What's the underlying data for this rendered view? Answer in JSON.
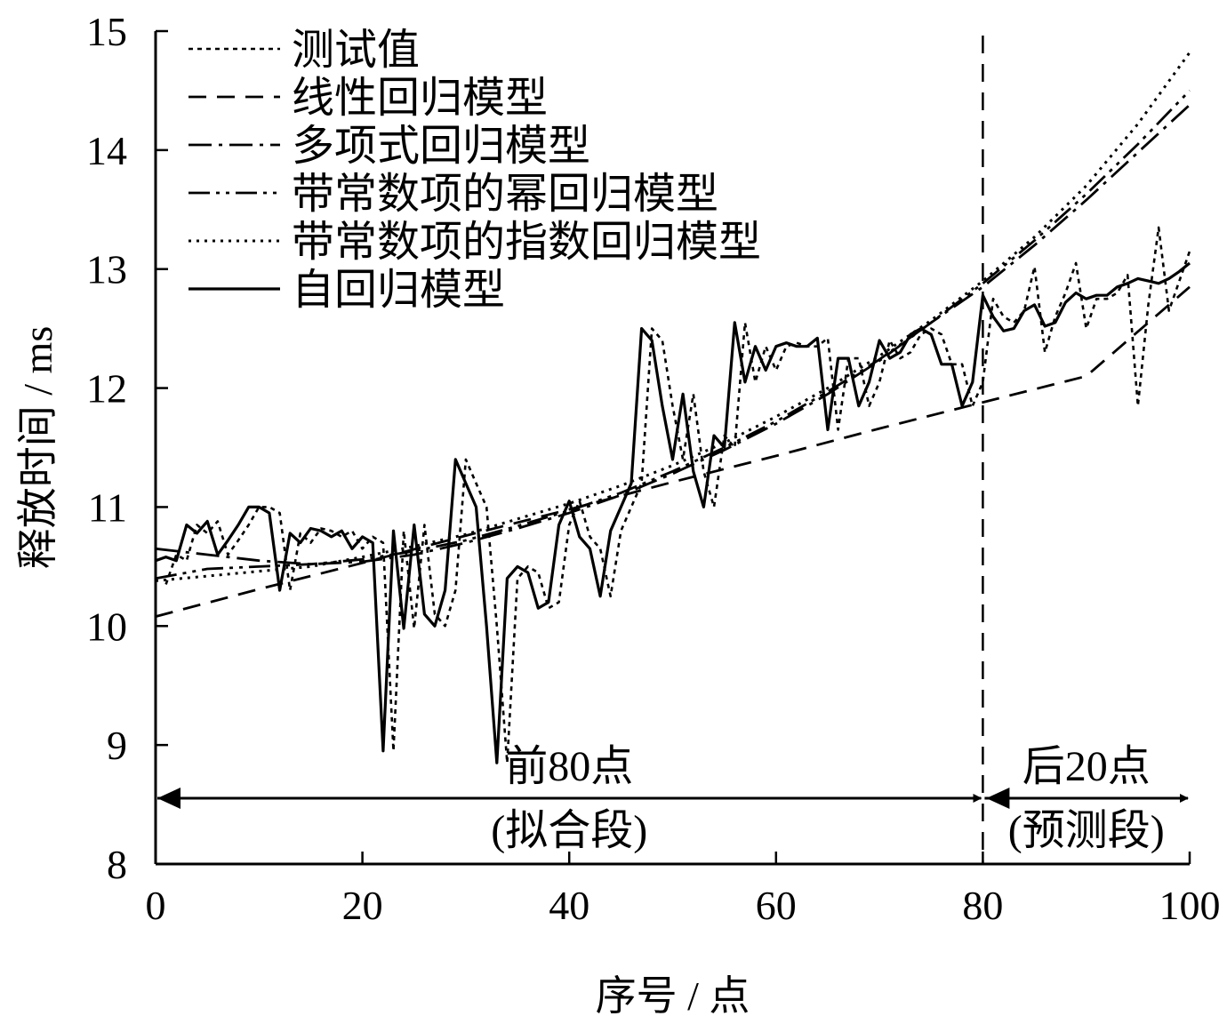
{
  "chart_data": {
    "type": "line",
    "xlabel": "序号 / 点",
    "ylabel": "释放时间 / ms",
    "xlim": [
      0,
      100
    ],
    "ylim": [
      8,
      15
    ],
    "xticks": [
      "0",
      "20",
      "40",
      "60",
      "80",
      "100"
    ],
    "yticks": [
      "8",
      "9",
      "10",
      "11",
      "12",
      "13",
      "14",
      "15"
    ],
    "grid": false,
    "legend_placement": "top-left",
    "divider_x": 80,
    "annotations": {
      "fit_segment": {
        "label": "前80点",
        "sublabel": "(拟合段)",
        "x_range": [
          0,
          80
        ]
      },
      "predict_segment": {
        "label": "后20点",
        "sublabel": "(预测段)",
        "x_range": [
          80,
          100
        ]
      }
    },
    "series": [
      {
        "name": "测试值",
        "style": "dotted-fine",
        "x": [
          1,
          2,
          3,
          4,
          5,
          6,
          7,
          8,
          9,
          10,
          11,
          12,
          13,
          14,
          15,
          16,
          17,
          18,
          19,
          20,
          21,
          22,
          23,
          24,
          25,
          26,
          27,
          28,
          29,
          30,
          31,
          32,
          33,
          34,
          35,
          36,
          37,
          38,
          39,
          40,
          41,
          42,
          43,
          44,
          45,
          46,
          47,
          48,
          49,
          50,
          51,
          52,
          53,
          54,
          55,
          56,
          57,
          58,
          59,
          60,
          61,
          62,
          63,
          64,
          65,
          66,
          67,
          68,
          69,
          70,
          71,
          72,
          73,
          74,
          75,
          76,
          77,
          78,
          79,
          80,
          81,
          82,
          83,
          84,
          85,
          86,
          87,
          88,
          89,
          90,
          91,
          92,
          93,
          94,
          95,
          96,
          97,
          98,
          99,
          100
        ],
        "values": [
          10.35,
          10.6,
          10.55,
          10.85,
          10.78,
          10.88,
          10.6,
          10.72,
          10.85,
          11.0,
          11.0,
          10.95,
          10.3,
          10.78,
          10.7,
          10.82,
          10.8,
          10.75,
          10.8,
          10.65,
          10.75,
          10.7,
          8.95,
          10.8,
          9.98,
          10.85,
          10.1,
          10.0,
          10.3,
          11.4,
          11.2,
          11.0,
          10.0,
          8.85,
          10.4,
          10.5,
          10.45,
          10.15,
          10.2,
          10.85,
          11.05,
          10.75,
          10.65,
          10.25,
          10.8,
          11.0,
          11.2,
          12.5,
          12.4,
          11.85,
          11.4,
          11.95,
          11.3,
          11.0,
          11.6,
          11.5,
          12.55,
          12.05,
          12.35,
          12.15,
          12.35,
          12.38,
          12.35,
          12.35,
          12.42,
          11.65,
          12.25,
          12.25,
          11.85,
          12.05,
          12.4,
          12.25,
          12.3,
          12.45,
          12.5,
          12.45,
          12.2,
          12.2,
          11.85,
          12.05,
          12.75,
          12.6,
          12.55,
          12.65,
          13.02,
          12.3,
          12.6,
          12.8,
          13.05,
          12.5,
          12.75,
          12.75,
          12.8,
          12.95,
          11.85,
          12.7,
          13.35,
          12.65,
          12.9,
          13.15
        ]
      },
      {
        "name": "线性回归模型",
        "style": "dashed",
        "x": [
          0,
          10,
          20,
          30,
          40,
          50,
          60,
          70,
          80,
          90,
          100
        ],
        "values": [
          10.08,
          10.31,
          10.53,
          10.76,
          10.98,
          11.21,
          11.43,
          11.66,
          11.88,
          12.1,
          12.85
        ]
      },
      {
        "name": "多项式回归模型",
        "style": "dash-dot",
        "x": [
          0,
          5,
          10,
          15,
          20,
          25,
          30,
          35,
          40,
          45,
          50,
          55,
          60,
          65,
          70,
          75,
          80,
          85,
          90,
          95,
          100
        ],
        "values": [
          10.65,
          10.6,
          10.55,
          10.52,
          10.54,
          10.6,
          10.7,
          10.82,
          10.95,
          11.1,
          11.28,
          11.48,
          11.7,
          11.95,
          12.23,
          12.55,
          12.85,
          13.2,
          13.58,
          13.98,
          14.38
        ]
      },
      {
        "name": "带常数项的幂回归模型",
        "style": "dash-dot-dot",
        "x": [
          0,
          5,
          10,
          15,
          20,
          25,
          30,
          35,
          40,
          45,
          50,
          55,
          60,
          65,
          70,
          75,
          80,
          85,
          90,
          95,
          100
        ],
        "values": [
          10.4,
          10.48,
          10.5,
          10.52,
          10.56,
          10.63,
          10.72,
          10.84,
          10.97,
          11.12,
          11.3,
          11.5,
          11.72,
          11.97,
          12.24,
          12.55,
          12.88,
          13.24,
          13.63,
          14.05,
          14.5
        ]
      },
      {
        "name": "带常数项的指数回归模型",
        "style": "dotted",
        "x": [
          0,
          5,
          10,
          15,
          20,
          25,
          30,
          35,
          40,
          45,
          50,
          55,
          60,
          65,
          70,
          75,
          80,
          85,
          90,
          95,
          100
        ],
        "values": [
          10.38,
          10.42,
          10.46,
          10.5,
          10.58,
          10.67,
          10.77,
          10.9,
          11.03,
          11.18,
          11.35,
          11.54,
          11.76,
          12.0,
          12.27,
          12.57,
          12.9,
          13.27,
          13.7,
          14.22,
          14.82
        ]
      },
      {
        "name": "自回归模型",
        "style": "solid",
        "x": [
          0,
          1,
          2,
          3,
          4,
          5,
          6,
          7,
          8,
          9,
          10,
          11,
          12,
          13,
          14,
          15,
          16,
          17,
          18,
          19,
          20,
          21,
          22,
          23,
          24,
          25,
          26,
          27,
          28,
          29,
          30,
          31,
          32,
          33,
          34,
          35,
          36,
          37,
          38,
          39,
          40,
          41,
          42,
          43,
          44,
          45,
          46,
          47,
          48,
          49,
          50,
          51,
          52,
          53,
          54,
          55,
          56,
          57,
          58,
          59,
          60,
          61,
          62,
          63,
          64,
          65,
          66,
          67,
          68,
          69,
          70,
          71,
          72,
          73,
          74,
          75,
          76,
          77,
          78,
          79,
          80,
          81,
          82,
          83,
          84,
          85,
          86,
          87,
          88,
          89,
          90,
          91,
          92,
          93,
          94,
          95,
          96,
          97,
          98,
          99,
          100
        ],
        "values": [
          10.55,
          10.58,
          10.55,
          10.85,
          10.78,
          10.88,
          10.6,
          10.72,
          10.85,
          11.0,
          11.0,
          10.95,
          10.3,
          10.78,
          10.7,
          10.82,
          10.8,
          10.75,
          10.8,
          10.65,
          10.75,
          10.7,
          8.95,
          10.8,
          9.98,
          10.85,
          10.1,
          10.0,
          10.3,
          11.4,
          11.2,
          11.0,
          10.0,
          8.85,
          10.4,
          10.5,
          10.45,
          10.15,
          10.2,
          10.85,
          11.05,
          10.75,
          10.65,
          10.25,
          10.8,
          11.0,
          11.2,
          12.5,
          12.4,
          11.85,
          11.4,
          11.95,
          11.3,
          11.0,
          11.6,
          11.5,
          12.55,
          12.05,
          12.35,
          12.15,
          12.35,
          12.38,
          12.35,
          12.35,
          12.42,
          11.65,
          12.25,
          12.25,
          11.85,
          12.05,
          12.4,
          12.25,
          12.3,
          12.45,
          12.5,
          12.45,
          12.2,
          12.2,
          11.85,
          12.05,
          12.78,
          12.6,
          12.48,
          12.5,
          12.65,
          12.7,
          12.52,
          12.55,
          12.72,
          12.8,
          12.75,
          12.78,
          12.78,
          12.85,
          12.88,
          12.92,
          12.9,
          12.88,
          12.92,
          12.98,
          13.05
        ]
      }
    ]
  }
}
